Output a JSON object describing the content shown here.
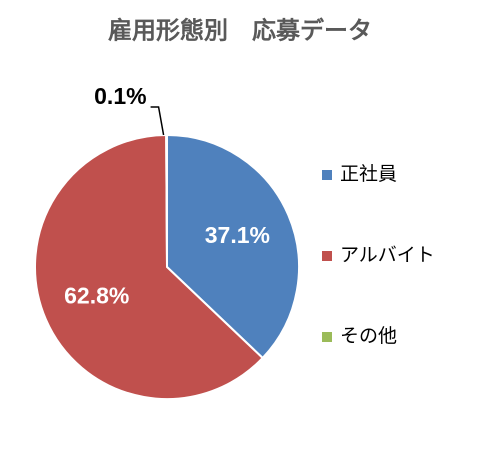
{
  "chart_data": {
    "type": "pie",
    "title": "雇用形態別　応募データ",
    "categories": [
      "正社員",
      "アルバイト",
      "その他"
    ],
    "values": [
      37.1,
      62.8,
      0.1
    ],
    "value_labels": [
      "37.1%",
      "62.8%",
      "0.1%"
    ],
    "colors": [
      "#4f81bd",
      "#c0504d",
      "#9bbb59"
    ],
    "legend": "right"
  }
}
